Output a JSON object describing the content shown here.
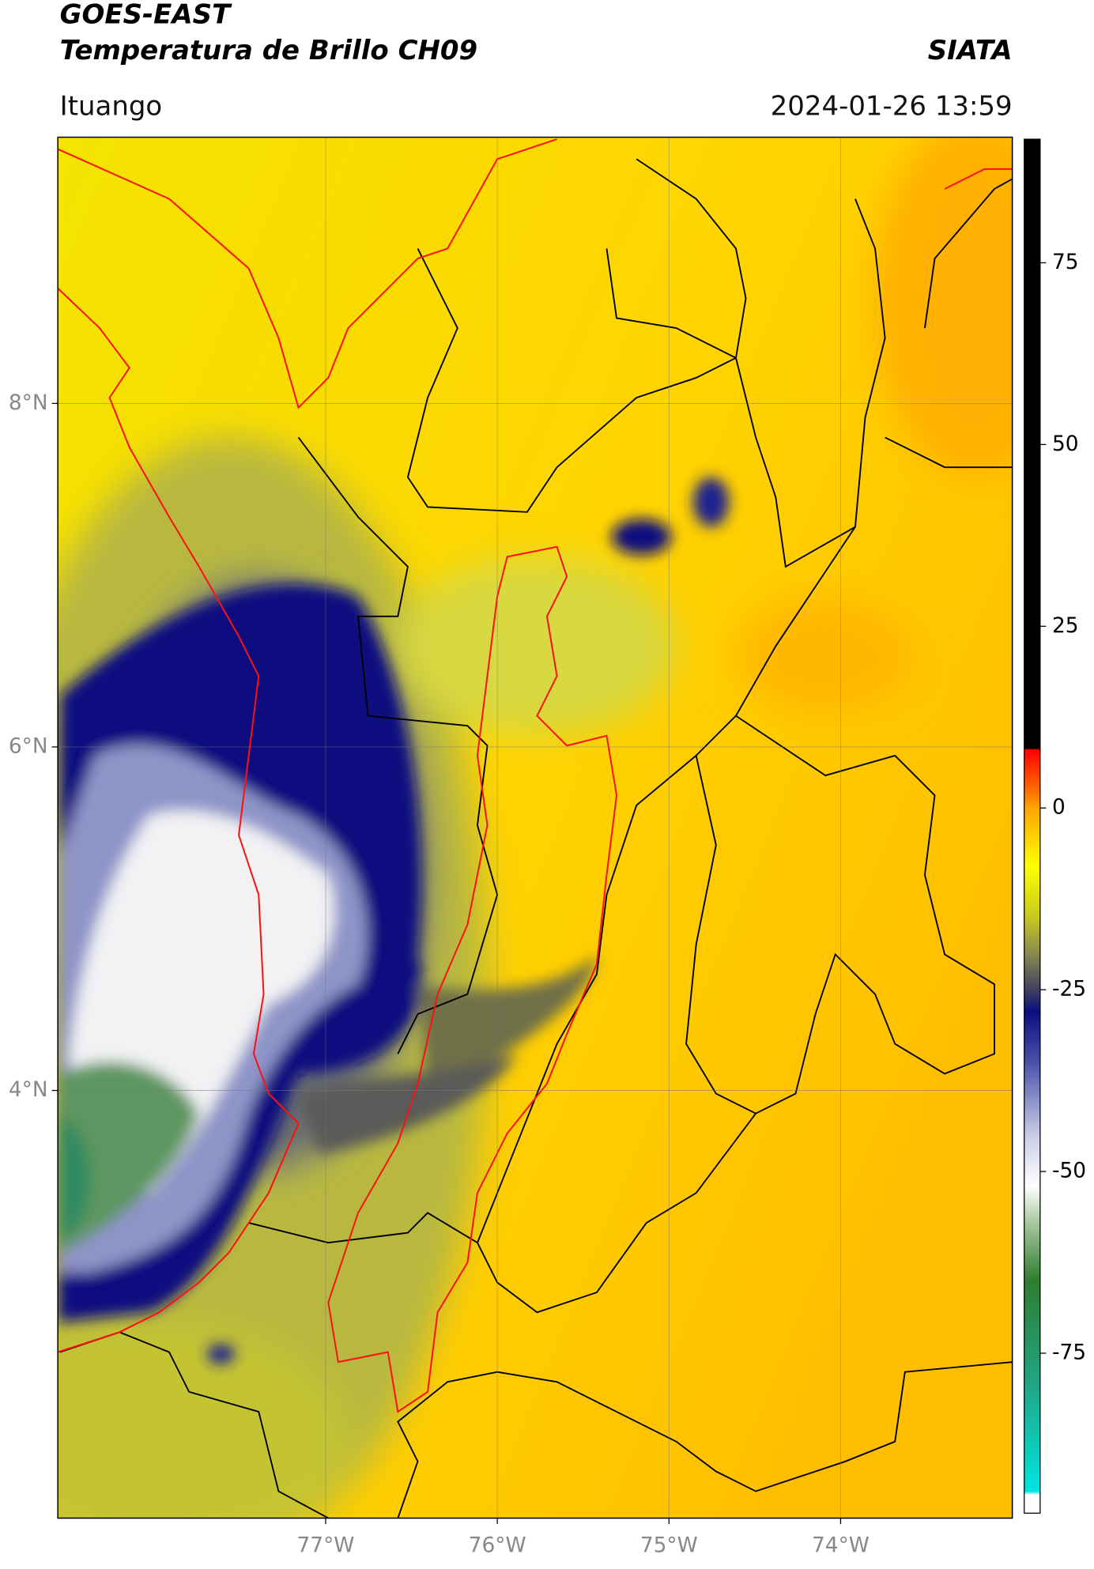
{
  "header": {
    "satellite": "GOES-EAST",
    "product": "Temperatura de Brillo CH09",
    "organization": "SIATA",
    "region": "Ituango",
    "timestamp": "2024-01-26 13:59"
  },
  "map": {
    "xlim": [
      -78.56,
      -73.0
    ],
    "ylim": [
      1.51,
      9.55
    ],
    "xticks": [
      {
        "value": -77,
        "label": "77°W"
      },
      {
        "value": -76,
        "label": "76°W"
      },
      {
        "value": -75,
        "label": "75°W"
      },
      {
        "value": -74,
        "label": "74°W"
      }
    ],
    "yticks": [
      {
        "value": 8,
        "label": "8°N"
      },
      {
        "value": 6,
        "label": "6°N"
      },
      {
        "value": 4,
        "label": "4°N"
      }
    ],
    "grid": true
  },
  "colorbar": {
    "lim": [
      -97,
      92
    ],
    "ticks": [
      75,
      50,
      25,
      0,
      -25,
      -50,
      -75
    ],
    "stops": [
      {
        "value": -97,
        "color": "#ffffff"
      },
      {
        "value": -94.5,
        "color": "#ffffff"
      },
      {
        "value": -94,
        "color": "#00e5e0"
      },
      {
        "value": -80,
        "color": "#1fa88a"
      },
      {
        "value": -65,
        "color": "#2f7d2f"
      },
      {
        "value": -57,
        "color": "#a9c9a0"
      },
      {
        "value": -52,
        "color": "#ffffff"
      },
      {
        "value": -45,
        "color": "#c9cce6"
      },
      {
        "value": -35,
        "color": "#4a52a8"
      },
      {
        "value": -28,
        "color": "#0a0f80"
      },
      {
        "value": -25,
        "color": "#404060"
      },
      {
        "value": -20,
        "color": "#8a8a50"
      },
      {
        "value": -15,
        "color": "#c8c820"
      },
      {
        "value": -8,
        "color": "#ffff00"
      },
      {
        "value": 0,
        "color": "#ffa500"
      },
      {
        "value": 3,
        "color": "#ff6000"
      },
      {
        "value": 8,
        "color": "#ff0000"
      },
      {
        "value": 8.2,
        "color": "#000000"
      },
      {
        "value": 92,
        "color": "#000000"
      }
    ]
  }
}
